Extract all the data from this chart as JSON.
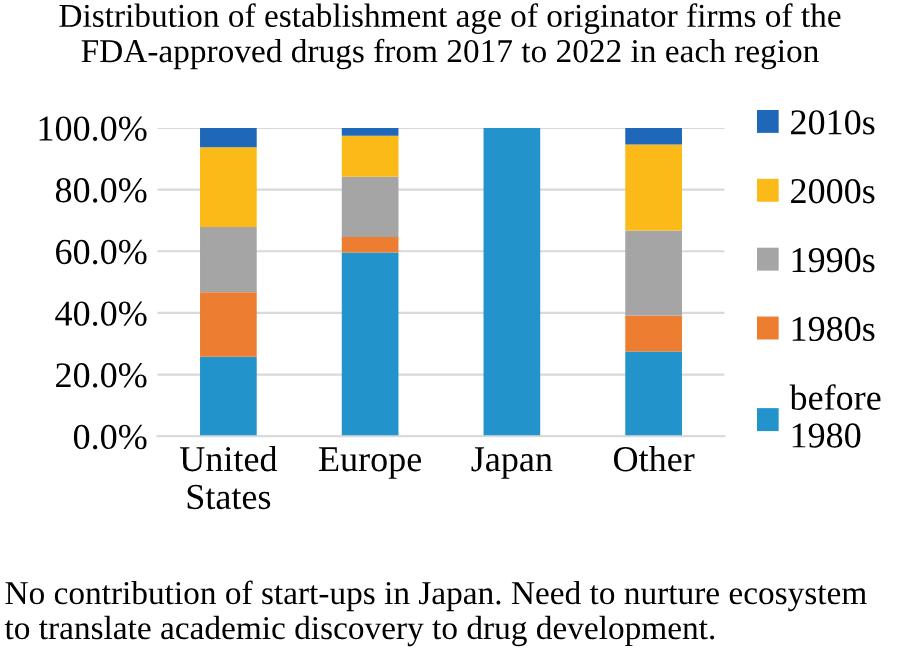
{
  "chart_data": {
    "type": "bar",
    "stacked": true,
    "title": "Distribution of establishment age of originator firms of the FDA-approved drugs from 2017 to 2022 in each region",
    "categories": [
      "United States",
      "Europe",
      "Japan",
      "Other"
    ],
    "series": [
      {
        "name": "before 1980",
        "color": "#2394cb",
        "values": [
          25.8,
          59.6,
          100,
          27.5
        ]
      },
      {
        "name": "1980s",
        "color": "#ed7d31",
        "values": [
          20.9,
          5.0,
          0,
          11.7
        ]
      },
      {
        "name": "1990s",
        "color": "#a5a5a5",
        "values": [
          21.2,
          19.6,
          0,
          27.5
        ]
      },
      {
        "name": "2000s",
        "color": "#fbba17",
        "values": [
          25.8,
          13.3,
          0,
          27.9
        ]
      },
      {
        "name": "2010s",
        "color": "#1f68b9",
        "values": [
          6.3,
          2.5,
          0,
          5.4
        ]
      }
    ],
    "ylim": [
      0,
      100
    ],
    "yticks": [
      {
        "value": 0,
        "label": "0.0%"
      },
      {
        "value": 20,
        "label": "20.0%"
      },
      {
        "value": 40,
        "label": "40.0%"
      },
      {
        "value": 60,
        "label": "60.0%"
      },
      {
        "value": 80,
        "label": "80.0%"
      },
      {
        "value": 100,
        "label": "100.0%"
      }
    ],
    "grid": "y",
    "legend": "right",
    "annotations": [
      "No contribution of start-ups in Japan. Need to nurture ecosystem to translate academic discovery to drug development."
    ]
  }
}
